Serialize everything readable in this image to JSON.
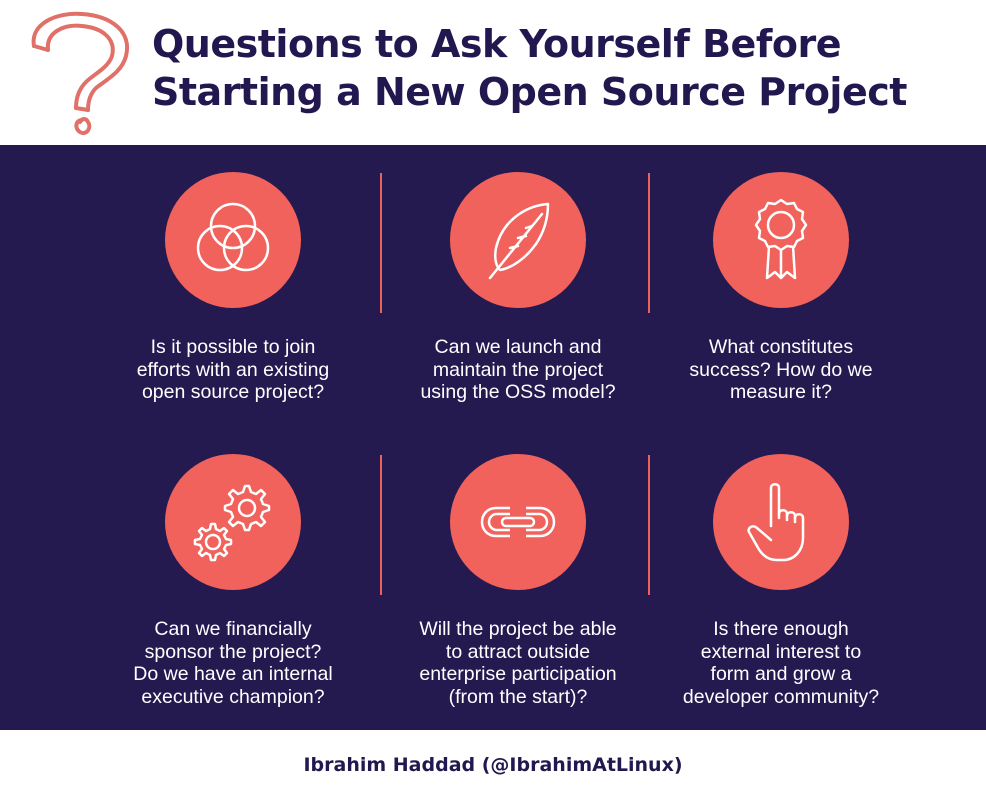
{
  "header": {
    "title_line1": "Questions to Ask Yourself Before",
    "title_line2": "Starting a New Open Source Project",
    "icon": "question-mark-icon"
  },
  "colors": {
    "navy": "#241a50",
    "title_navy": "#22184f",
    "coral": "#f0625b",
    "divider": "#e9645f",
    "question_mark": "#e07068"
  },
  "questions": [
    {
      "icon": "overlapping-circles-icon",
      "text": "Is it possible to join\nefforts with an existing\nopen source project?"
    },
    {
      "icon": "feather-icon",
      "text": "Can we launch and\nmaintain the project\nusing the OSS model?"
    },
    {
      "icon": "award-ribbon-icon",
      "text": "What constitutes\nsuccess? How do we\nmeasure it?"
    },
    {
      "icon": "gears-icon",
      "text": "Can we financially\nsponsor the project?\nDo we have an internal\nexecutive champion?"
    },
    {
      "icon": "chain-link-icon",
      "text": "Will the project be able\nto attract outside\nenterprise participation\n(from the start)?"
    },
    {
      "icon": "pointing-hand-icon",
      "text": "Is there enough\nexternal interest to\nform and grow a\ndeveloper community?"
    }
  ],
  "footer": {
    "credit": "Ibrahim Haddad (@IbrahimAtLinux)"
  }
}
